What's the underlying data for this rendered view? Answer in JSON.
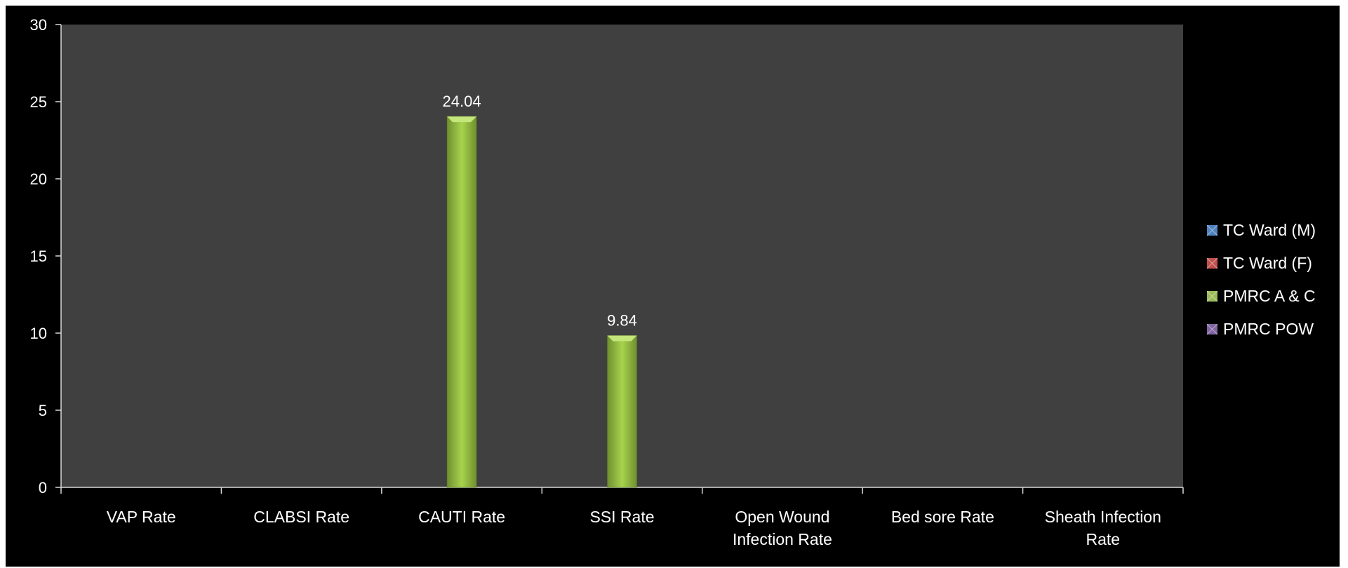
{
  "chart_data": {
    "type": "bar",
    "categories": [
      [
        "VAP Rate"
      ],
      [
        "CLABSI Rate"
      ],
      [
        "CAUTI Rate"
      ],
      [
        "SSI Rate"
      ],
      [
        "Open Wound",
        "Infection Rate"
      ],
      [
        "Bed sore Rate"
      ],
      [
        "Sheath Infection",
        "Rate"
      ]
    ],
    "series": [
      {
        "name": "TC Ward (M)",
        "color": "#4f81bd",
        "values": [
          0,
          0,
          0,
          0,
          0,
          0,
          0
        ]
      },
      {
        "name": "TC Ward (F)",
        "color": "#c0504d",
        "values": [
          0,
          0,
          0,
          0,
          0,
          0,
          0
        ]
      },
      {
        "name": "PMRC A & C",
        "color": "#9bbb59",
        "values": [
          0,
          0,
          24.04,
          9.84,
          0,
          0,
          0
        ]
      },
      {
        "name": "PMRC POW",
        "color": "#8064a2",
        "values": [
          0,
          0,
          0,
          0,
          0,
          0,
          0
        ]
      }
    ],
    "data_labels": [
      {
        "series": 2,
        "category": 2,
        "text": "24.04"
      },
      {
        "series": 2,
        "category": 3,
        "text": "9.84"
      }
    ],
    "yticks": [
      "0",
      "5",
      "10",
      "15",
      "20",
      "25",
      "30"
    ],
    "ylim": [
      0,
      30
    ],
    "title": "",
    "xlabel": "",
    "ylabel": "",
    "grid": false,
    "legend_position": "right",
    "background": "#000000",
    "plot_background": "#404040",
    "axis_color": "#d9d9d9"
  }
}
